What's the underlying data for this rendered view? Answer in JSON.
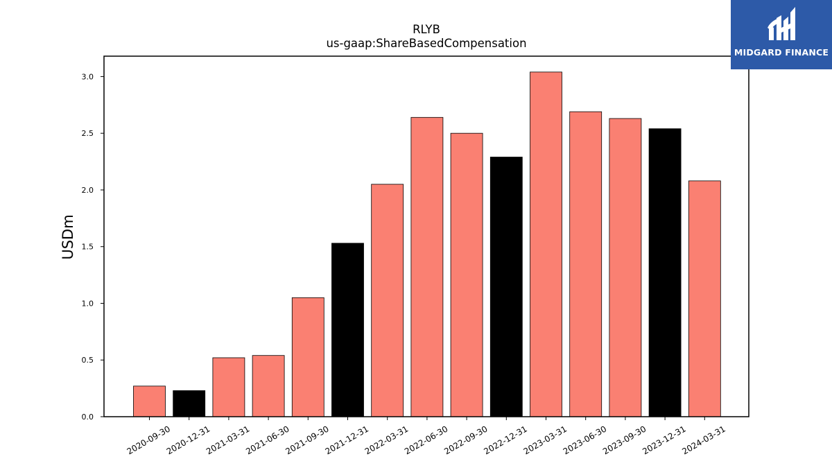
{
  "brand": {
    "name": "MIDGARD FINANCE",
    "logo_icon": "midgard-logo-mark",
    "background_color": "#2d5aa8",
    "text_color": "#ffffff"
  },
  "chart_data": {
    "type": "bar",
    "title": "RLYB",
    "subtitle": "us-gaap:ShareBasedCompensation",
    "xlabel": "",
    "ylabel": "USDm",
    "categories": [
      "2020-09-30",
      "2020-12-31",
      "2021-03-31",
      "2021-06-30",
      "2021-09-30",
      "2021-12-31",
      "2022-03-31",
      "2022-06-30",
      "2022-09-30",
      "2022-12-31",
      "2023-03-31",
      "2023-06-30",
      "2023-09-30",
      "2023-12-31",
      "2024-03-31"
    ],
    "values": [
      0.27,
      0.23,
      0.52,
      0.54,
      1.05,
      1.53,
      2.05,
      2.64,
      2.5,
      2.29,
      3.04,
      2.69,
      2.63,
      2.54,
      2.08
    ],
    "bar_colors": [
      "#fa8072",
      "#000000",
      "#fa8072",
      "#fa8072",
      "#fa8072",
      "#000000",
      "#fa8072",
      "#fa8072",
      "#fa8072",
      "#000000",
      "#fa8072",
      "#fa8072",
      "#fa8072",
      "#000000",
      "#fa8072"
    ],
    "ylim": [
      0,
      3.18
    ],
    "yticks": [
      0.0,
      0.5,
      1.0,
      1.5,
      2.0,
      2.5,
      3.0
    ],
    "ytick_labels": [
      "0.0",
      "0.5",
      "1.0",
      "1.5",
      "2.0",
      "2.5",
      "3.0"
    ],
    "grid": false,
    "legend": "none"
  }
}
